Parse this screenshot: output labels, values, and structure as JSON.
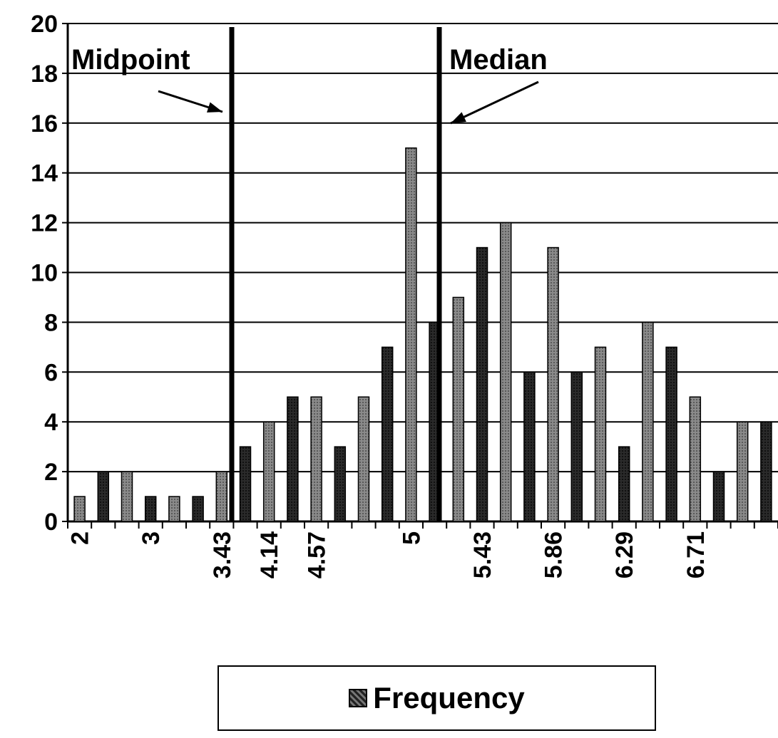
{
  "chart_data": {
    "type": "bar",
    "categories": [
      "2",
      "",
      "",
      "3",
      "",
      "",
      "3.43",
      "",
      "4.14",
      "",
      "4.57",
      "",
      "",
      "",
      "5",
      "",
      "",
      "5.43",
      "",
      "",
      "5.86",
      "",
      "",
      "6.29",
      "",
      "",
      "6.71",
      "",
      "",
      ""
    ],
    "series": [
      {
        "name": "Frequency",
        "values": [
          1,
          2,
          2,
          1,
          1,
          1,
          2,
          3,
          4,
          5,
          5,
          3,
          5,
          7,
          15,
          8,
          9,
          11,
          12,
          6,
          11,
          6,
          7,
          3,
          8,
          7,
          5,
          2,
          4,
          4
        ],
        "colors": [
          "#777777",
          "#222222",
          "#777777",
          "#222222",
          "#777777",
          "#222222",
          "#777777",
          "#222222",
          "#777777",
          "#222222",
          "#777777",
          "#222222",
          "#777777",
          "#222222",
          "#777777",
          "#222222",
          "#777777",
          "#222222",
          "#777777",
          "#222222",
          "#777777",
          "#222222",
          "#777777",
          "#222222",
          "#777777",
          "#222222",
          "#777777",
          "#222222",
          "#777777",
          "#222222"
        ]
      }
    ],
    "ylim": [
      0,
      20
    ],
    "yticks": [
      "0",
      "2",
      "4",
      "6",
      "8",
      "10",
      "12",
      "14",
      "16",
      "18",
      "20"
    ],
    "grid": true,
    "legend_position": "bottom",
    "annotations": [
      {
        "label": "Midpoint",
        "x": 3.43
      },
      {
        "label": "Median",
        "x": 5.0
      }
    ]
  }
}
